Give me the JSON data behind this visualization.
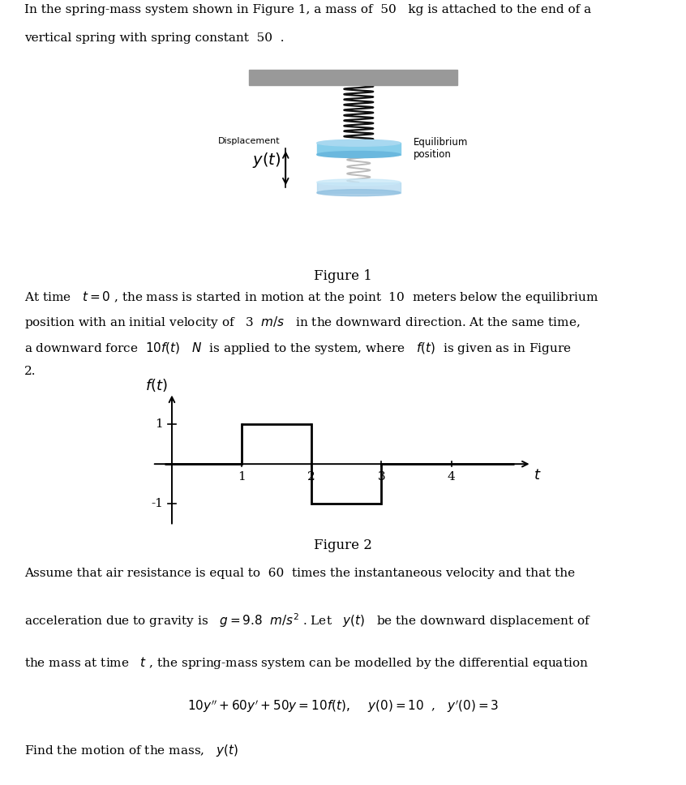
{
  "bg_color": "#ffffff",
  "fig_width": 8.46,
  "fig_height": 9.68,
  "dpi": 100,
  "ceiling_color": "#999999",
  "spring_color": "#111111",
  "mass_top_color": "#a8d8f0",
  "mass_body_color": "#87CEEB",
  "mass_bot_color": "#6ab8de",
  "ghost_spring_color": "#bbbbbb",
  "ghost_top_color": "#c8e8f8",
  "ghost_body_color": "#b0d8f0",
  "ghost_bot_color": "#90c0e0",
  "graph_xlim": [
    -0.3,
    5.2
  ],
  "graph_ylim": [
    -1.65,
    1.85
  ]
}
